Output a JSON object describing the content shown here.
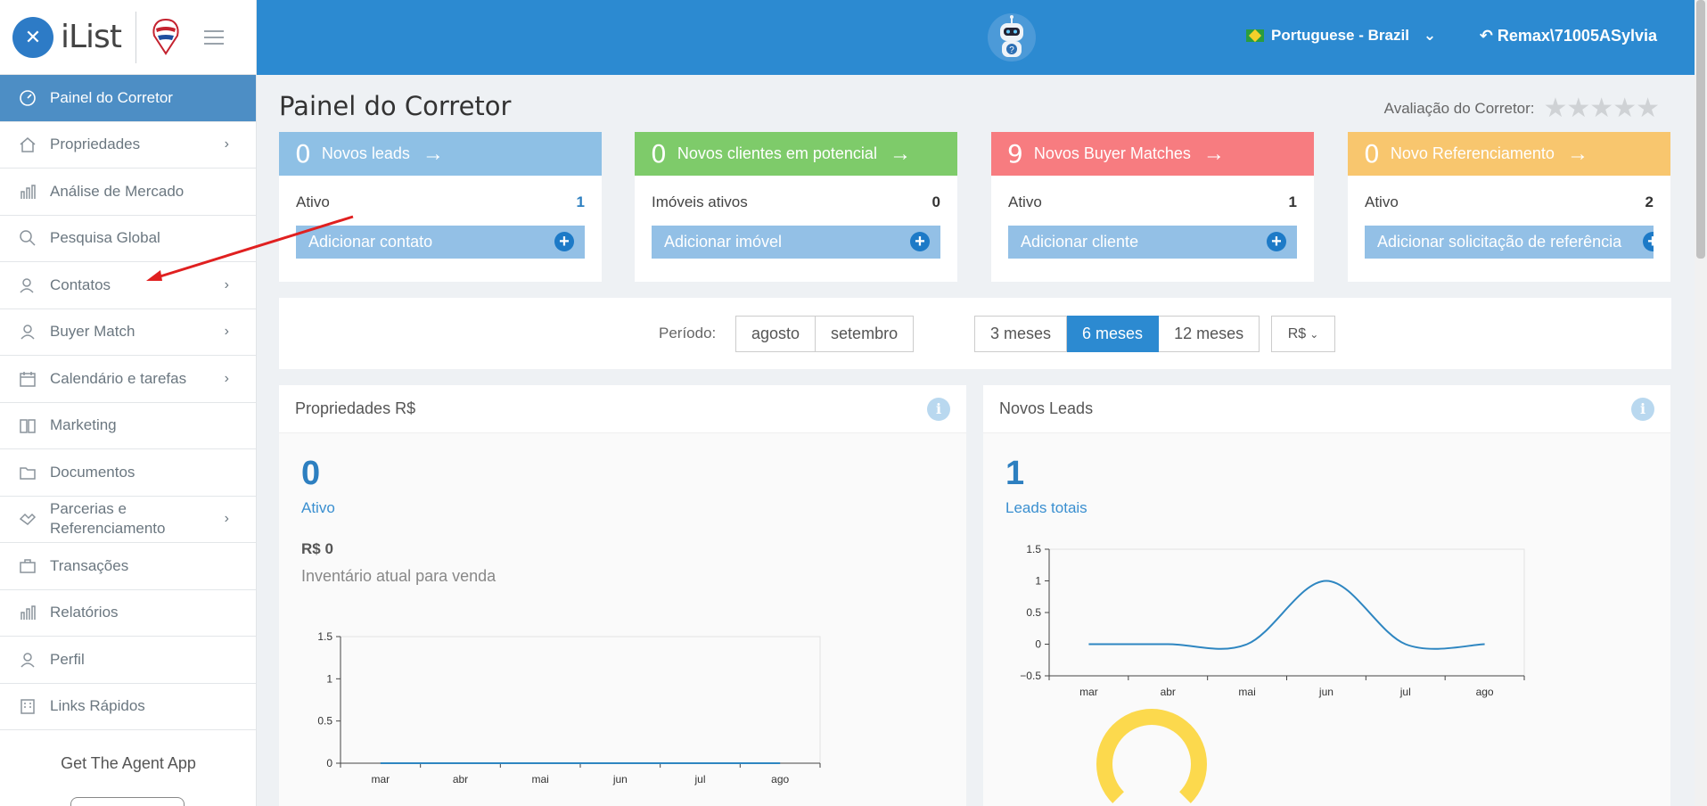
{
  "brand": {
    "name": "iList",
    "logo_letter": "✕"
  },
  "sidebar": {
    "items": [
      {
        "label": "Painel do Corretor",
        "icon": "dashboard-icon",
        "active": true,
        "chevron": false
      },
      {
        "label": "Propriedades",
        "icon": "home-icon",
        "active": false,
        "chevron": true
      },
      {
        "label": "Análise de Mercado",
        "icon": "bar-chart-icon",
        "active": false,
        "chevron": false
      },
      {
        "label": "Pesquisa Global",
        "icon": "search-icon",
        "active": false,
        "chevron": false
      },
      {
        "label": "Contatos",
        "icon": "contacts-icon",
        "active": false,
        "chevron": true
      },
      {
        "label": "Buyer Match",
        "icon": "user-icon",
        "active": false,
        "chevron": true
      },
      {
        "label": "Calendário e tarefas",
        "icon": "calendar-icon",
        "active": false,
        "chevron": true
      },
      {
        "label": "Marketing",
        "icon": "book-icon",
        "active": false,
        "chevron": false
      },
      {
        "label": "Documentos",
        "icon": "folder-icon",
        "active": false,
        "chevron": false
      },
      {
        "label_line1": "Parcerias e",
        "label_line2": "Referenciamento",
        "icon": "handshake-icon",
        "active": false,
        "chevron": true
      },
      {
        "label": "Transações",
        "icon": "briefcase-icon",
        "active": false,
        "chevron": false
      },
      {
        "label": "Relatórios",
        "icon": "bar-chart-icon",
        "active": false,
        "chevron": false
      },
      {
        "label": "Perfil",
        "icon": "user-icon",
        "active": false,
        "chevron": false
      },
      {
        "label": "Links Rápidos",
        "icon": "building-icon",
        "active": false,
        "chevron": false
      }
    ],
    "agent_app": "Get The Agent App"
  },
  "topbar": {
    "language": "Portuguese - Brazil",
    "user": "Remax\\71005ASylvia"
  },
  "main": {
    "title": "Painel do Corretor",
    "rating_label": "Avaliação do Corretor:",
    "rating_stars": "★★★★★",
    "cards": [
      {
        "num": "0",
        "title": "Novos leads",
        "row_label": "Ativo",
        "row_value": "1",
        "button": "Adicionar contato",
        "color": "#8ec0e5"
      },
      {
        "num": "0",
        "title": "Novos clientes em potencial",
        "row_label": "Imóveis ativos",
        "row_value": "0",
        "button": "Adicionar imóvel",
        "color": "#7ecb6a"
      },
      {
        "num": "9",
        "title": "Novos Buyer Matches",
        "row_label": "Ativo",
        "row_value": "1",
        "button": "Adicionar cliente",
        "color": "#f77c80"
      },
      {
        "num": "0",
        "title": "Novo Referenciamento",
        "row_label": "Ativo",
        "row_value": "2",
        "button": "Adicionar solicitação de referência",
        "color": "#f8c66e"
      }
    ],
    "period": {
      "label": "Período:",
      "months": [
        "agosto",
        "setembro"
      ],
      "ranges": [
        "3 meses",
        "6 meses",
        "12 meses"
      ],
      "selected_range": "6 meses",
      "currency": "R$"
    },
    "panels": {
      "properties": {
        "title": "Propriedades  R$",
        "big": "0",
        "big_label": "Ativo",
        "money": "R$ 0",
        "money_label": "Inventário atual para venda"
      },
      "leads": {
        "title": "Novos Leads",
        "big": "1",
        "big_label": "Leads totais"
      }
    }
  },
  "chart_data": [
    {
      "type": "line",
      "categories": [
        "mar",
        "abr",
        "mai",
        "jun",
        "jul",
        "ago"
      ],
      "values": [
        0,
        0,
        0,
        0,
        0,
        0
      ],
      "yticks": [
        "1.5",
        "1",
        "0.5",
        "0"
      ],
      "ylim": [
        0,
        1.5
      ]
    },
    {
      "type": "line",
      "categories": [
        "mar",
        "abr",
        "mai",
        "jun",
        "jul",
        "ago"
      ],
      "values": [
        0,
        0,
        0,
        1,
        0,
        0
      ],
      "yticks": [
        "1.5",
        "1",
        "0.5",
        "0",
        "−0.5"
      ],
      "ylim": [
        -0.5,
        1.5
      ]
    }
  ]
}
